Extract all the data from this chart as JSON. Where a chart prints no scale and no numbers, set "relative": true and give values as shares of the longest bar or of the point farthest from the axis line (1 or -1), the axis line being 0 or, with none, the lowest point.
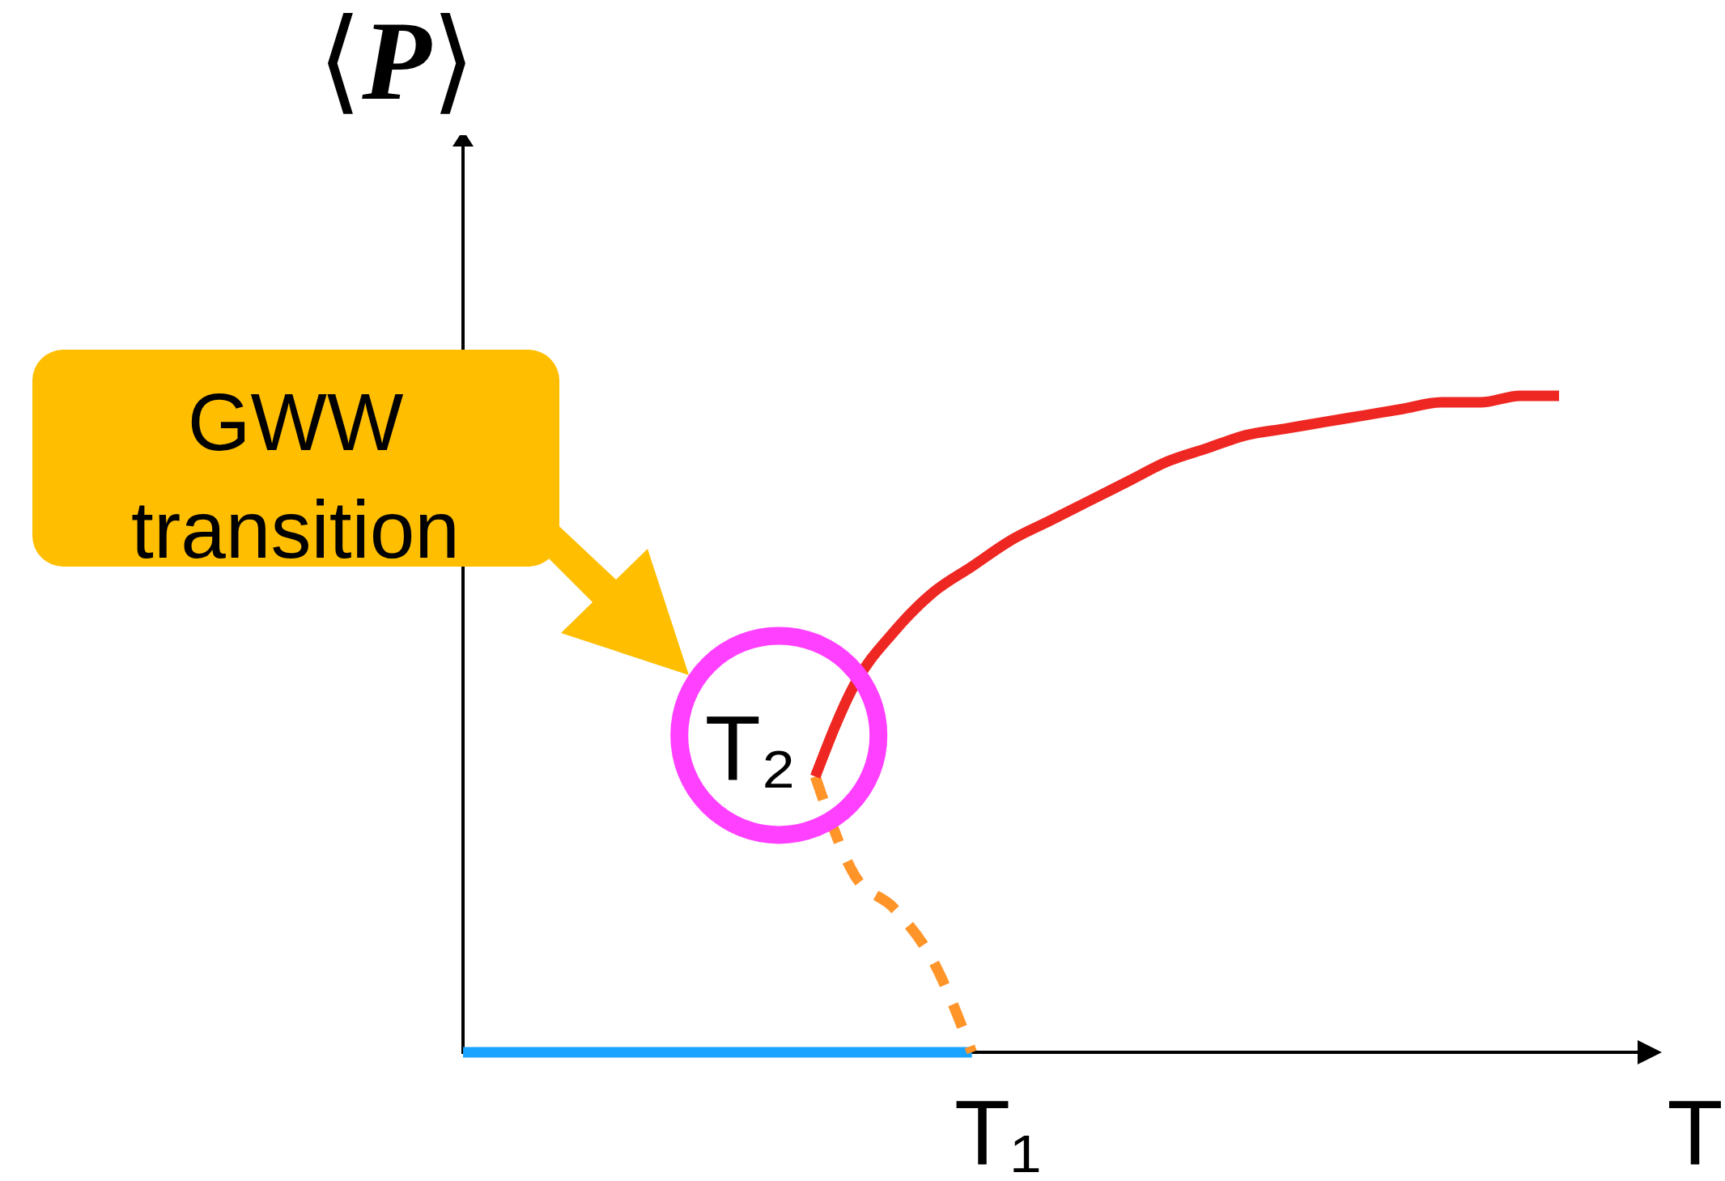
{
  "chart_data": {
    "type": "line",
    "xlabel": "T",
    "ylabel": "⟨P⟩",
    "relative": true,
    "categories": [
      null,
      null,
      null,
      null,
      null,
      null,
      null,
      null,
      null,
      null,
      null,
      null,
      null,
      null,
      null,
      null,
      null,
      null,
      null,
      null,
      null,
      null,
      null,
      null,
      null,
      null,
      null,
      null,
      null
    ],
    "series": [
      {
        "color": "#1aa3ff",
        "values": [
          0,
          0,
          0,
          0,
          0,
          0,
          0,
          0,
          0,
          0,
          0,
          0,
          0,
          0,
          null,
          null,
          null,
          null,
          null,
          null,
          null,
          null,
          null,
          null,
          null,
          null,
          null,
          null,
          null
        ]
      },
      {
        "color": "#ff9429",
        "line_style": "dashed",
        "values": [
          null,
          null,
          null,
          null,
          null,
          null,
          null,
          null,
          null,
          0.42,
          0.27,
          0.22,
          0.14,
          0,
          null,
          null,
          null,
          null,
          null,
          null,
          null,
          null,
          null,
          null,
          null,
          null,
          null,
          null,
          null
        ]
      },
      {
        "color": "#ee2722",
        "values": [
          null,
          null,
          null,
          null,
          null,
          null,
          null,
          null,
          null,
          0.42,
          0.56,
          0.64,
          0.7,
          0.74,
          0.78,
          0.81,
          0.84,
          0.87,
          0.9,
          0.92,
          0.94,
          0.95,
          0.96,
          0.97,
          0.98,
          0.99,
          0.99,
          1,
          1
        ]
      }
    ],
    "annotations": [
      "T₂",
      "T₁",
      "GWW transition"
    ]
  }
}
